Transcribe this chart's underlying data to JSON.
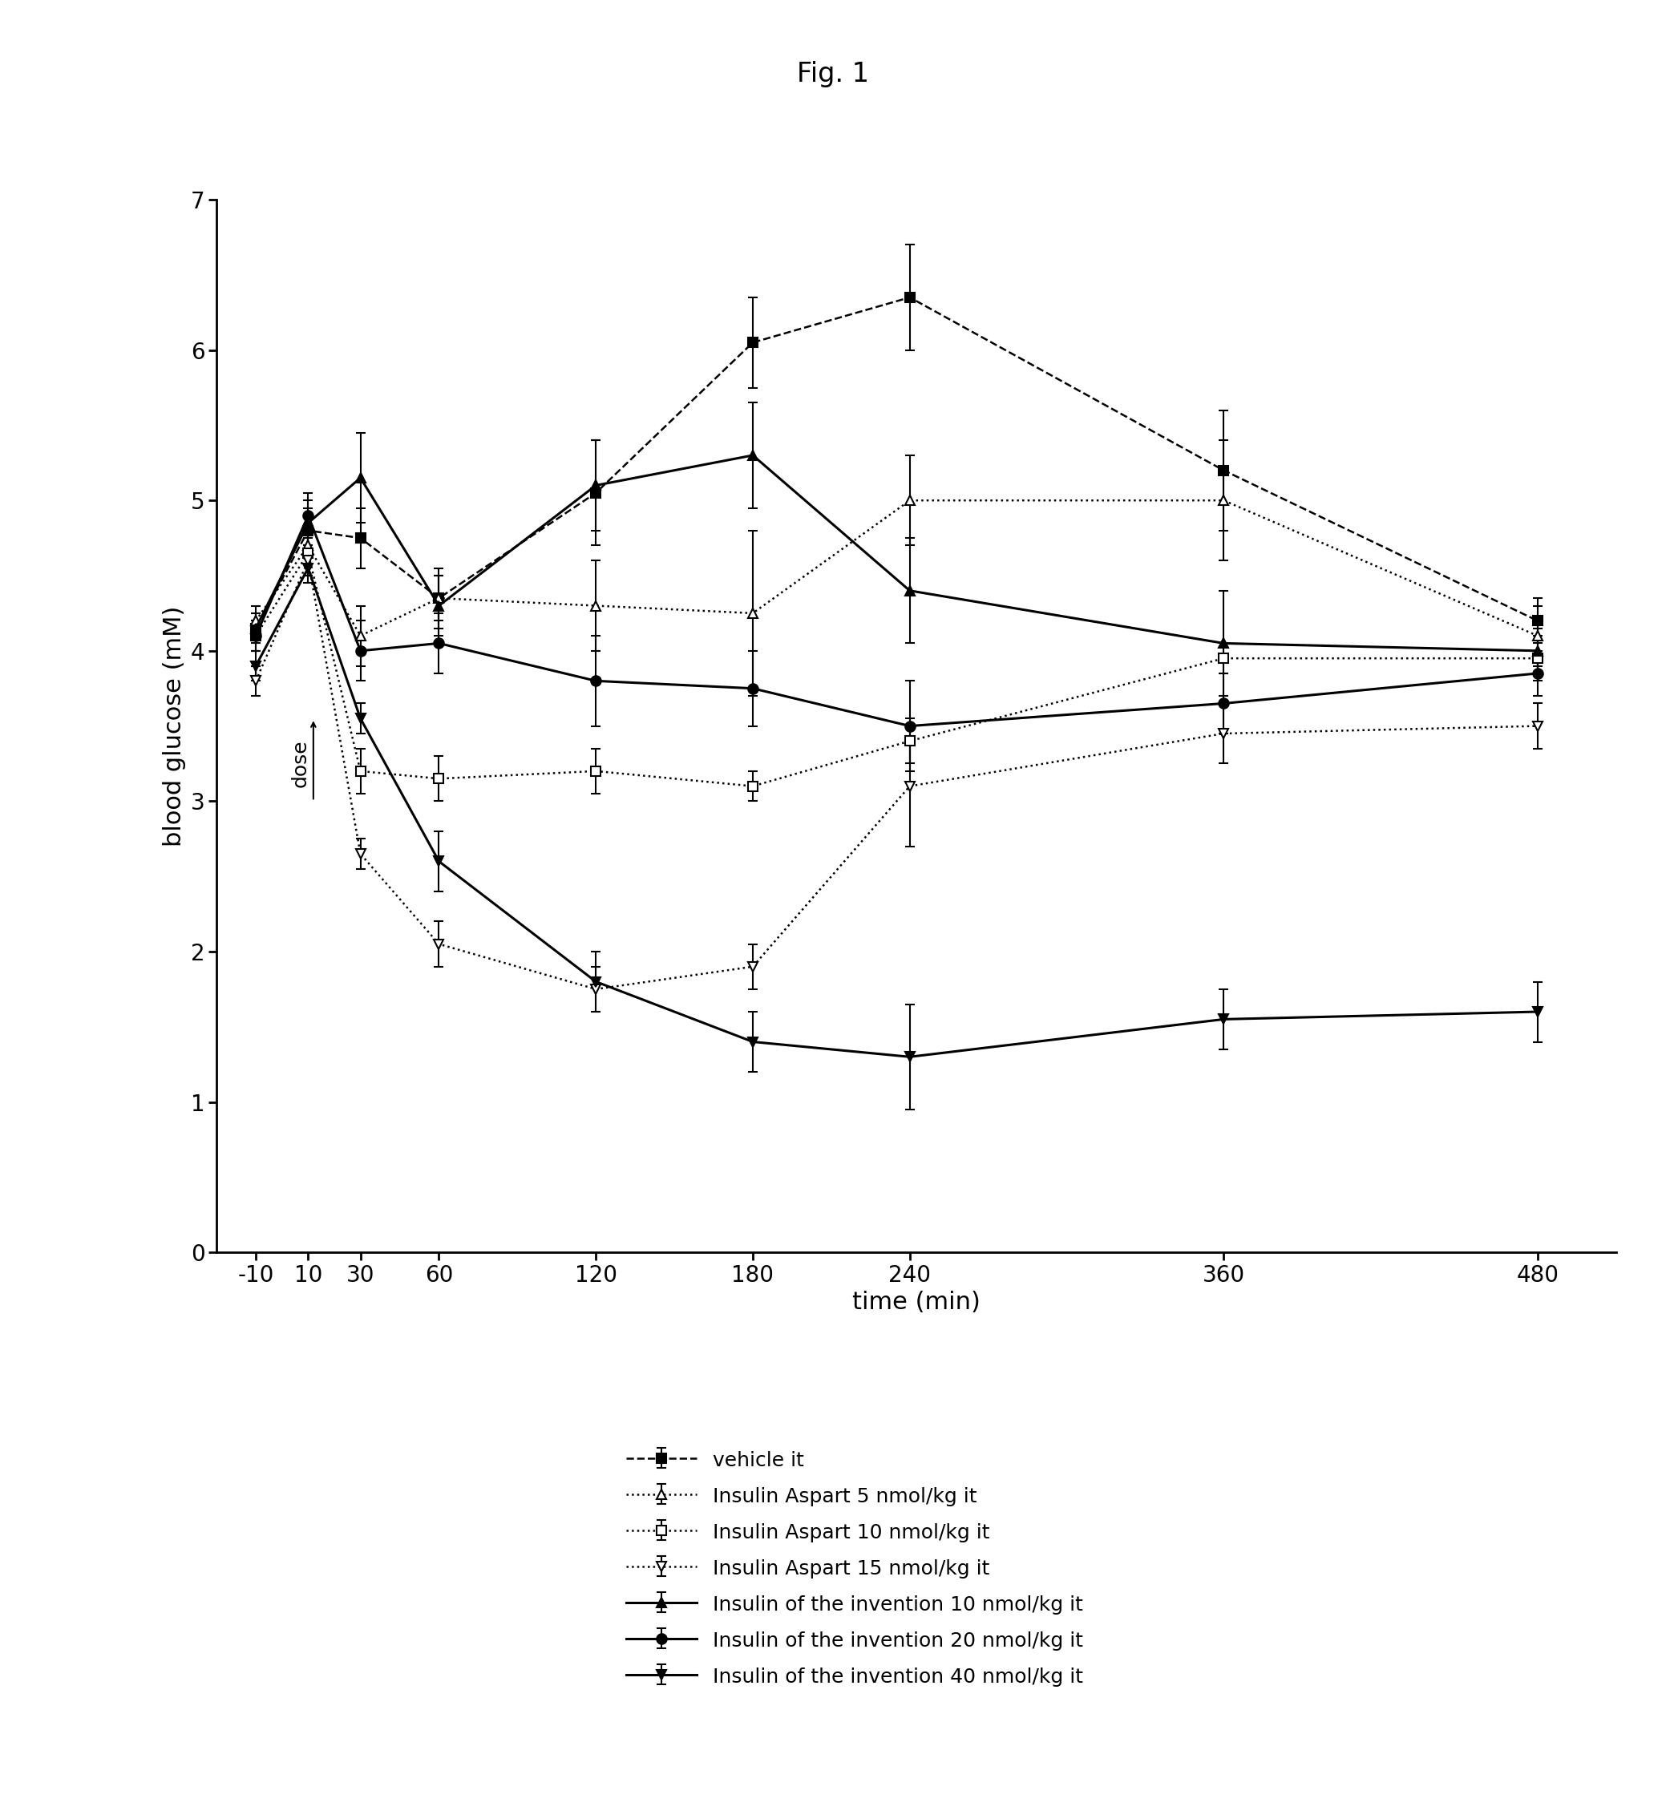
{
  "title": "Fig. 1",
  "xlabel": "time (min)",
  "ylabel": "blood glucose (mM)",
  "x_ticks": [
    -10,
    10,
    30,
    60,
    120,
    180,
    240,
    360,
    480
  ],
  "x_tick_labels": [
    "-10",
    "10",
    "30",
    "60",
    "120",
    "180",
    "240",
    "360",
    "480"
  ],
  "ylim": [
    0,
    7
  ],
  "yticks": [
    0,
    1,
    2,
    3,
    4,
    5,
    6,
    7
  ],
  "series": [
    {
      "label": "vehicle it",
      "x": [
        -10,
        10,
        30,
        60,
        120,
        180,
        240,
        360,
        480
      ],
      "y": [
        4.15,
        4.8,
        4.75,
        4.35,
        5.05,
        6.05,
        6.35,
        5.2,
        4.2
      ],
      "yerr": [
        0.1,
        0.15,
        0.2,
        0.2,
        0.35,
        0.3,
        0.35,
        0.4,
        0.15
      ],
      "linestyle": "dashed",
      "marker": "s",
      "markersize": 9,
      "fillstyle": "full",
      "color": "#000000",
      "linewidth": 1.8
    },
    {
      "label": "Insulin Aspart 5 nmol/kg it",
      "x": [
        -10,
        10,
        30,
        60,
        120,
        180,
        240,
        360,
        480
      ],
      "y": [
        4.2,
        4.7,
        4.1,
        4.35,
        4.3,
        4.25,
        5.0,
        5.0,
        4.1
      ],
      "yerr": [
        0.1,
        0.2,
        0.2,
        0.15,
        0.3,
        0.55,
        0.3,
        0.4,
        0.2
      ],
      "linestyle": "dotted",
      "marker": "^",
      "markersize": 9,
      "fillstyle": "none",
      "color": "#000000",
      "linewidth": 1.8
    },
    {
      "label": "Insulin Aspart 10 nmol/kg it",
      "x": [
        -10,
        10,
        30,
        60,
        120,
        180,
        240,
        360,
        480
      ],
      "y": [
        4.1,
        4.65,
        3.2,
        3.15,
        3.2,
        3.1,
        3.4,
        3.95,
        3.95
      ],
      "yerr": [
        0.1,
        0.15,
        0.15,
        0.15,
        0.15,
        0.1,
        0.15,
        0.1,
        0.15
      ],
      "linestyle": "dotted",
      "marker": "s",
      "markersize": 9,
      "fillstyle": "none",
      "color": "#000000",
      "linewidth": 1.8
    },
    {
      "label": "Insulin Aspart 15 nmol/kg it",
      "x": [
        -10,
        10,
        30,
        60,
        120,
        180,
        240,
        360,
        480
      ],
      "y": [
        3.8,
        4.6,
        2.65,
        2.05,
        1.75,
        1.9,
        3.1,
        3.45,
        3.5
      ],
      "yerr": [
        0.1,
        0.1,
        0.1,
        0.15,
        0.15,
        0.15,
        0.4,
        0.2,
        0.15
      ],
      "linestyle": "dotted",
      "marker": "v",
      "markersize": 9,
      "fillstyle": "none",
      "color": "#000000",
      "linewidth": 1.8
    },
    {
      "label": "Insulin of the invention 10 nmol/kg it",
      "x": [
        -10,
        10,
        30,
        60,
        120,
        180,
        240,
        360,
        480
      ],
      "y": [
        4.15,
        4.85,
        5.15,
        4.3,
        5.1,
        5.3,
        4.4,
        4.05,
        4.0
      ],
      "yerr": [
        0.1,
        0.15,
        0.3,
        0.2,
        0.3,
        0.35,
        0.35,
        0.35,
        0.15
      ],
      "linestyle": "solid",
      "marker": "^",
      "markersize": 9,
      "fillstyle": "full",
      "color": "#000000",
      "linewidth": 2.2
    },
    {
      "label": "Insulin of the invention 20 nmol/kg it",
      "x": [
        -10,
        10,
        30,
        60,
        120,
        180,
        240,
        360,
        480
      ],
      "y": [
        4.1,
        4.9,
        4.0,
        4.05,
        3.8,
        3.75,
        3.5,
        3.65,
        3.85
      ],
      "yerr": [
        0.1,
        0.15,
        0.2,
        0.2,
        0.3,
        0.25,
        0.3,
        0.2,
        0.15
      ],
      "linestyle": "solid",
      "marker": "o",
      "markersize": 9,
      "fillstyle": "full",
      "color": "#000000",
      "linewidth": 2.2
    },
    {
      "label": "Insulin of the invention 40 nmol/kg it",
      "x": [
        -10,
        10,
        30,
        60,
        120,
        180,
        240,
        360,
        480
      ],
      "y": [
        3.9,
        4.55,
        3.55,
        2.6,
        1.8,
        1.4,
        1.3,
        1.55,
        1.6
      ],
      "yerr": [
        0.1,
        0.1,
        0.1,
        0.2,
        0.2,
        0.2,
        0.35,
        0.2,
        0.2
      ],
      "linestyle": "solid",
      "marker": "v",
      "markersize": 9,
      "fillstyle": "full",
      "color": "#000000",
      "linewidth": 2.2
    }
  ],
  "background_color": "#ffffff",
  "title_fontsize": 24,
  "axis_label_fontsize": 22,
  "tick_fontsize": 20,
  "legend_fontsize": 18
}
